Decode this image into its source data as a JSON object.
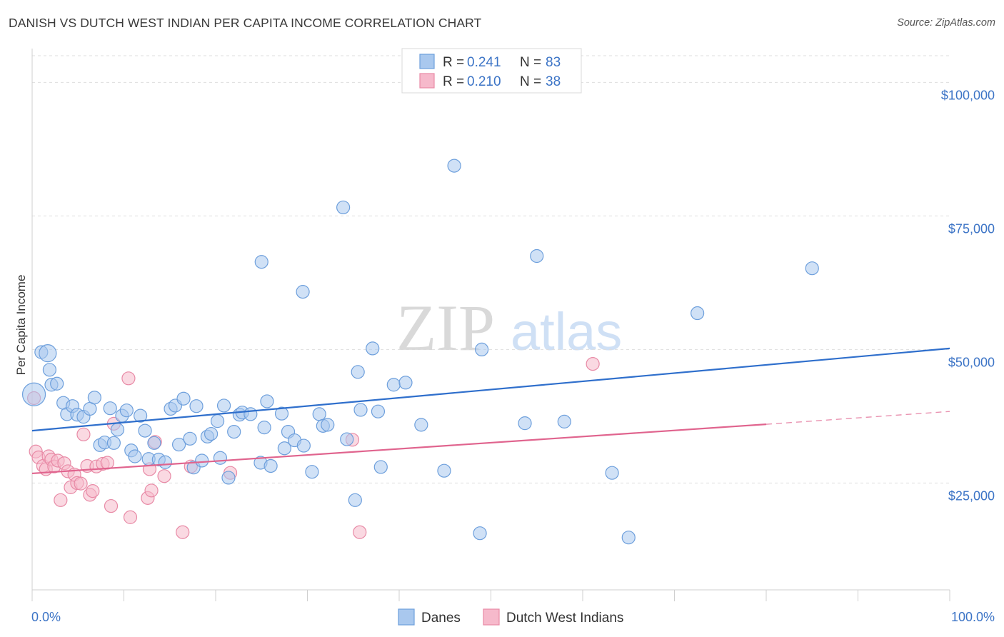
{
  "header": {
    "title": "DANISH VS DUTCH WEST INDIAN PER CAPITA INCOME CORRELATION CHART",
    "source": "Source: ZipAtlas.com"
  },
  "watermark": {
    "zip": "ZIP",
    "atlas": "atlas"
  },
  "colors": {
    "danes_fill": "#a9c8ee",
    "danes_stroke": "#6d9fdc",
    "danes_line": "#2f6fcc",
    "dwi_fill": "#f6b9cb",
    "dwi_stroke": "#e88aa6",
    "dwi_line": "#e0648e",
    "tick_label": "#3c74c6",
    "grid": "#dedede"
  },
  "chart_data": {
    "type": "scatter",
    "title": "DANISH VS DUTCH WEST INDIAN PER CAPITA INCOME CORRELATION CHART",
    "xlabel": "",
    "ylabel": "Per Capita Income",
    "xlim": [
      0,
      100
    ],
    "ylim": [
      5000,
      105000
    ],
    "x_tick_labels": [
      "0.0%",
      "100.0%"
    ],
    "y_ticks": [
      25000,
      50000,
      75000,
      100000
    ],
    "y_tick_labels": [
      "$25,000",
      "$50,000",
      "$75,000",
      "$100,000"
    ],
    "grid": true,
    "legend_top": [
      {
        "r_label": "R =",
        "r_value": "0.241",
        "n_label": "N =",
        "n_value": "83"
      },
      {
        "r_label": "R =",
        "r_value": "0.210",
        "n_label": "N =",
        "n_value": "38"
      }
    ],
    "legend_bottom": [
      "Danes",
      "Dutch West Indians"
    ],
    "series": [
      {
        "name": "Danes",
        "trend": {
          "x0": 0,
          "y0": 34800,
          "x1": 100,
          "y1": 50200
        },
        "points": [
          [
            1.0,
            49500
          ],
          [
            1.9,
            46200
          ],
          [
            2.1,
            43400
          ],
          [
            2.7,
            43600
          ],
          [
            3.4,
            40000
          ],
          [
            3.8,
            37900
          ],
          [
            4.4,
            39400
          ],
          [
            4.9,
            37800
          ],
          [
            5.6,
            37400
          ],
          [
            6.3,
            38900
          ],
          [
            6.8,
            41000
          ],
          [
            7.4,
            32100
          ],
          [
            7.9,
            32600
          ],
          [
            8.5,
            39000
          ],
          [
            8.9,
            32500
          ],
          [
            9.3,
            35000
          ],
          [
            9.8,
            37600
          ],
          [
            10.3,
            38600
          ],
          [
            10.8,
            31100
          ],
          [
            11.2,
            30000
          ],
          [
            11.8,
            37600
          ],
          [
            12.3,
            34800
          ],
          [
            12.7,
            29500
          ],
          [
            13.3,
            32500
          ],
          [
            13.8,
            29400
          ],
          [
            14.5,
            28900
          ],
          [
            15.1,
            38900
          ],
          [
            15.6,
            39500
          ],
          [
            16.0,
            32200
          ],
          [
            16.5,
            40800
          ],
          [
            17.2,
            33300
          ],
          [
            17.6,
            27900
          ],
          [
            17.9,
            39400
          ],
          [
            18.5,
            29200
          ],
          [
            19.1,
            33700
          ],
          [
            19.5,
            34200
          ],
          [
            20.2,
            36600
          ],
          [
            20.5,
            29700
          ],
          [
            20.9,
            39500
          ],
          [
            21.4,
            26000
          ],
          [
            22.0,
            34600
          ],
          [
            22.6,
            37800
          ],
          [
            22.9,
            38200
          ],
          [
            23.8,
            37900
          ],
          [
            24.9,
            28800
          ],
          [
            25.3,
            35400
          ],
          [
            25.6,
            40300
          ],
          [
            26.0,
            28200
          ],
          [
            27.2,
            38000
          ],
          [
            27.5,
            31500
          ],
          [
            27.9,
            34600
          ],
          [
            28.6,
            33000
          ],
          [
            29.6,
            32000
          ],
          [
            30.5,
            27100
          ],
          [
            31.3,
            37900
          ],
          [
            31.7,
            35700
          ],
          [
            32.2,
            35900
          ],
          [
            34.3,
            33200
          ],
          [
            35.5,
            45800
          ],
          [
            35.8,
            38700
          ],
          [
            37.1,
            50200
          ],
          [
            37.7,
            38400
          ],
          [
            38.0,
            28000
          ],
          [
            39.4,
            43400
          ],
          [
            40.7,
            43800
          ],
          [
            35.2,
            21800
          ],
          [
            42.4,
            35900
          ],
          [
            44.9,
            27300
          ],
          [
            49.0,
            50000
          ],
          [
            53.7,
            36200
          ],
          [
            58.0,
            36500
          ],
          [
            63.2,
            26900
          ],
          [
            25.0,
            66400
          ],
          [
            29.5,
            60800
          ],
          [
            33.9,
            76600
          ],
          [
            46.0,
            84400
          ],
          [
            55.0,
            67500
          ],
          [
            72.5,
            56800
          ],
          [
            85.0,
            65200
          ],
          [
            0.2,
            41600
          ],
          [
            1.7,
            49300
          ],
          [
            48.8,
            15600
          ],
          [
            65.0,
            14800
          ]
        ]
      },
      {
        "name": "Dutch West Indians",
        "trend": {
          "x0": 0,
          "y0": 26800,
          "x1": 80,
          "y1": 36000
        },
        "trend_dashed": {
          "x0": 80,
          "y0": 36000,
          "x1": 100,
          "y1": 38400
        },
        "points": [
          [
            0.2,
            40900
          ],
          [
            0.4,
            30900
          ],
          [
            0.7,
            29800
          ],
          [
            1.2,
            28200
          ],
          [
            1.5,
            27600
          ],
          [
            1.8,
            30000
          ],
          [
            2.1,
            29400
          ],
          [
            2.4,
            28100
          ],
          [
            2.8,
            29200
          ],
          [
            3.1,
            21800
          ],
          [
            3.5,
            28700
          ],
          [
            3.9,
            27200
          ],
          [
            4.2,
            24200
          ],
          [
            4.6,
            26600
          ],
          [
            4.9,
            25000
          ],
          [
            5.3,
            24900
          ],
          [
            5.6,
            34100
          ],
          [
            6.0,
            28200
          ],
          [
            6.3,
            22800
          ],
          [
            6.6,
            23500
          ],
          [
            7.0,
            28100
          ],
          [
            7.7,
            28600
          ],
          [
            8.2,
            28800
          ],
          [
            8.6,
            20700
          ],
          [
            8.9,
            36100
          ],
          [
            10.5,
            44600
          ],
          [
            10.7,
            18600
          ],
          [
            12.6,
            22200
          ],
          [
            12.8,
            27600
          ],
          [
            13.0,
            23600
          ],
          [
            13.4,
            32700
          ],
          [
            14.4,
            26300
          ],
          [
            16.4,
            15800
          ],
          [
            17.3,
            28100
          ],
          [
            21.6,
            26900
          ],
          [
            34.9,
            33100
          ],
          [
            35.7,
            15800
          ],
          [
            61.1,
            47300
          ]
        ]
      }
    ]
  }
}
